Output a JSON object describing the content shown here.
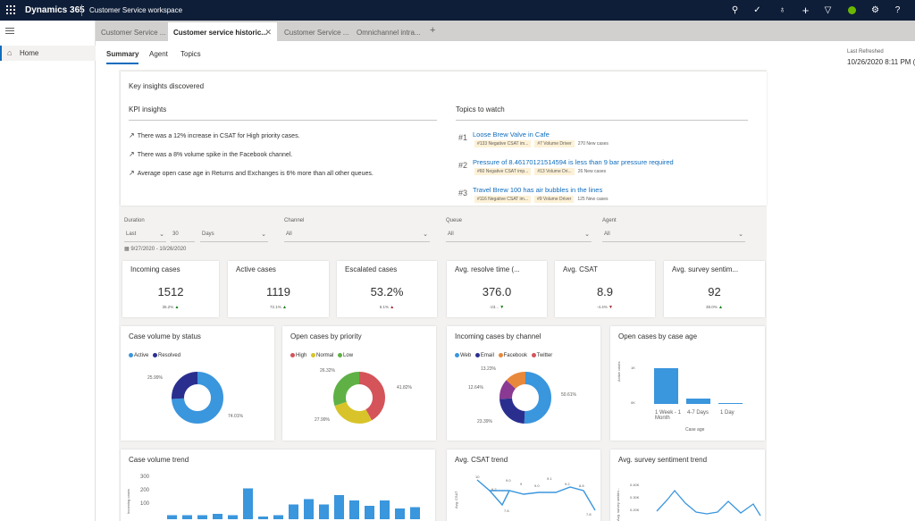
{
  "app": {
    "brand": "Dynamics 365",
    "workspace": "Customer Service workspace"
  },
  "sidebar": {
    "home_label": "Home"
  },
  "session_tabs": [
    "Customer Service ...",
    "Customer service historic...",
    "Customer Service ...",
    "Omnichannel intra..."
  ],
  "subtabs": [
    "Summary",
    "Agent",
    "Topics"
  ],
  "refresh": {
    "label": "Last Refreshed",
    "value": "10/26/2020 8:11 PM (L"
  },
  "insights": {
    "title": "Key insights discovered",
    "kpi_header": "KPI insights",
    "kpi_lines": [
      "There was a 12% increase in CSAT for High priority cases.",
      "There was a 8% volume spike in the Facebook channel.",
      "Average open case age in Returns and Exchanges is 6% more than all other queues."
    ],
    "topics_header": "Topics to watch",
    "topics": [
      {
        "num": "#1",
        "title": "Loose Brew Valve in Cafe",
        "tags": [
          "#133 Negative CSAT im...",
          "#7 Volume Driver"
        ],
        "cases": "270 New cases"
      },
      {
        "num": "#2",
        "title": "Pressure of 8.46170121514594 is less than 9 bar pressure required",
        "tags": [
          "#60 Negative CSAT imp...",
          "#13 Volume Dri..."
        ],
        "cases": "26 New cases"
      },
      {
        "num": "#3",
        "title": "Travel Brew 100 has air bubbles in the lines",
        "tags": [
          "#116 Negative CSAT im...",
          "#9 Volume Driver"
        ],
        "cases": "125 New cases"
      }
    ]
  },
  "filters": {
    "duration_label": "Duration",
    "duration_mode": "Last",
    "duration_value": "30",
    "duration_unit": "Days",
    "channel_label": "Channel",
    "channel_value": "All",
    "queue_label": "Queue",
    "queue_value": "All",
    "agent_label": "Agent",
    "agent_value": "All",
    "date_range": "9/27/2020 - 10/26/2020"
  },
  "kpis": [
    {
      "label": "Incoming cases",
      "value": "1512",
      "change": "35.2%",
      "trend": "up"
    },
    {
      "label": "Active cases",
      "value": "1119",
      "change": "72.1%",
      "trend": "up"
    },
    {
      "label": "Escalated cases",
      "value": "53.2%",
      "change": "6.1%",
      "trend": "up-red"
    },
    {
      "label": "Avg. resolve time (...",
      "value": "376.0",
      "change": "-23...",
      "trend": "down-green"
    },
    {
      "label": "Avg. CSAT",
      "value": "8.9",
      "change": "-4.4%",
      "trend": "down"
    },
    {
      "label": "Avg. survey sentim...",
      "value": "92",
      "change": "38.0%",
      "trend": "up"
    }
  ],
  "charts": {
    "status": {
      "title": "Case volume by status",
      "legend": [
        "Active",
        "Resolved"
      ],
      "labels": [
        "25.99%",
        "74.01%"
      ]
    },
    "priority": {
      "title": "Open cases by priority",
      "legend": [
        "High",
        "Normal",
        "Low"
      ],
      "labels": [
        "26.32%",
        "41.82%",
        "27.99%"
      ]
    },
    "channel": {
      "title": "Incoming cases by channel",
      "legend": [
        "Web",
        "Email",
        "Facebook",
        "Twitter"
      ],
      "labels": [
        "13.23%",
        "12.64%",
        "50.61%",
        "23.39%"
      ]
    },
    "age": {
      "title": "Open cases by case age",
      "ylabel": "Active cases",
      "yticks": [
        "1K",
        "0K"
      ],
      "cats": [
        "1 Week - 1 Month",
        "4-7 Days",
        "1 Day"
      ],
      "xlabel": "Case age"
    },
    "volume_trend": {
      "title": "Case volume trend",
      "ylabel": "Incoming cases",
      "yticks": [
        "300",
        "200",
        "100"
      ]
    },
    "csat_trend": {
      "title": "Avg. CSAT trend",
      "ylabel": "Avg. CSAT",
      "points": [
        "10",
        "9.2",
        "9.0",
        "9",
        "9.0",
        "9.1",
        "9.2",
        "8.8",
        "7.8",
        "7.8"
      ]
    },
    "sentiment_trend": {
      "title": "Avg. survey sentiment trend",
      "yticks": [
        "0.40K",
        "0.30K",
        "0.20K"
      ],
      "ylabel": "Avg. survey sentim..."
    }
  },
  "chart_data": [
    {
      "type": "pie",
      "title": "Case volume by status",
      "categories": [
        "Active",
        "Resolved"
      ],
      "values": [
        25.99,
        74.01
      ]
    },
    {
      "type": "pie",
      "title": "Open cases by priority",
      "categories": [
        "High",
        "Normal",
        "Low"
      ],
      "values": [
        41.82,
        27.99,
        26.32
      ]
    },
    {
      "type": "pie",
      "title": "Incoming cases by channel",
      "categories": [
        "Web",
        "Email",
        "Facebook",
        "Twitter"
      ],
      "values": [
        50.61,
        23.39,
        12.64,
        13.23
      ]
    },
    {
      "type": "bar",
      "title": "Open cases by case age",
      "categories": [
        "1 Week - 1 Month",
        "4-7 Days",
        "1 Day"
      ],
      "values": [
        1000,
        150,
        30
      ],
      "xlabel": "Case age",
      "ylabel": "Active cases"
    },
    {
      "type": "bar",
      "title": "Case volume trend",
      "ylabel": "Incoming cases",
      "values": [
        30,
        30,
        30,
        40,
        30,
        230,
        20,
        30,
        110,
        150,
        110,
        180,
        140,
        100,
        140,
        80,
        90,
        120,
        100,
        60,
        30,
        40,
        10
      ],
      "ylim": [
        0,
        300
      ]
    },
    {
      "type": "line",
      "title": "Avg. CSAT trend",
      "ylabel": "Avg. CSAT",
      "values": [
        10,
        9.2,
        9.0,
        9.0,
        9.0,
        9.1,
        9.2,
        8.8,
        7.8,
        7.8
      ]
    },
    {
      "type": "line",
      "title": "Avg. survey sentiment trend",
      "values": [
        0.3,
        0.35,
        0.3,
        0.25,
        0.28,
        0.3,
        0.32,
        0.3,
        0.25
      ],
      "ylim": [
        0.2,
        0.4
      ]
    }
  ],
  "colors": {
    "accent": "#0f6cbd",
    "topbar": "#0f1e38",
    "blue": "#3a96dd",
    "navy": "#2a2f8f",
    "green": "#5fb146",
    "yellow": "#d8c42a",
    "red": "#d4545a",
    "orange": "#e8883a",
    "purple": "#8a3a92"
  },
  "icons": {
    "waffle": "waffle-icon",
    "search": "search-icon",
    "task": "task-icon",
    "idea": "lightbulb-icon",
    "add": "plus-icon",
    "filter": "filter-icon",
    "settings": "gear-icon",
    "help": "question-icon"
  }
}
